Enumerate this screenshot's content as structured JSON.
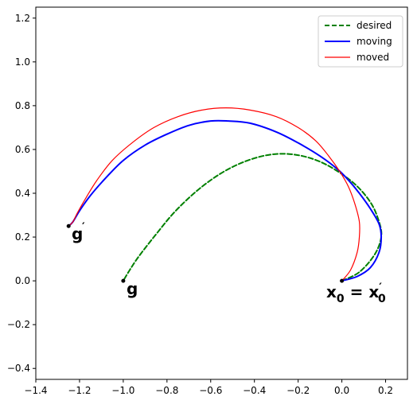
{
  "chart_data": {
    "type": "line",
    "title": "",
    "xlabel": "",
    "ylabel": "",
    "xlim": [
      -1.4,
      0.3
    ],
    "ylim": [
      -0.45,
      1.25
    ],
    "xticks": [
      -1.4,
      -1.2,
      -1.0,
      -0.8,
      -0.6,
      -0.4,
      -0.2,
      0.0,
      0.2
    ],
    "yticks": [
      -0.4,
      -0.2,
      0.0,
      0.2,
      0.4,
      0.6,
      0.8,
      1.0,
      1.2
    ],
    "xtick_labels": [
      "−1.4",
      "−1.2",
      "−1.0",
      "−0.8",
      "−0.6",
      "−0.4",
      "−0.2",
      "0.0",
      "0.2"
    ],
    "ytick_labels": [
      "−0.4",
      "−0.2",
      "0.0",
      "0.2",
      "0.4",
      "0.6",
      "0.8",
      "1.0",
      "1.2"
    ],
    "grid": false,
    "legend": "top-right",
    "series": [
      {
        "name": "desired",
        "color": "#008000",
        "style": "dashed",
        "x": [
          0.0,
          0.08,
          0.15,
          0.18,
          0.17,
          0.13,
          0.05,
          -0.07,
          -0.18,
          -0.29,
          -0.4,
          -0.52,
          -0.64,
          -0.76,
          -0.86,
          -0.93,
          -0.97,
          -1.0
        ],
        "y": [
          0.0,
          0.04,
          0.12,
          0.2,
          0.27,
          0.36,
          0.45,
          0.53,
          0.57,
          0.58,
          0.56,
          0.51,
          0.43,
          0.32,
          0.2,
          0.11,
          0.05,
          0.0
        ]
      },
      {
        "name": "moving",
        "color": "#0000ff",
        "style": "solid",
        "x": [
          0.0,
          0.07,
          0.13,
          0.17,
          0.18,
          0.17,
          0.13,
          0.08,
          0.03,
          -0.02,
          -0.1,
          -0.2,
          -0.3,
          -0.42,
          -0.52,
          -0.6,
          -0.7,
          -0.8,
          -0.9,
          -1.0,
          -1.08,
          -1.15,
          -1.2,
          -1.23,
          -1.25
        ],
        "y": [
          0.0,
          0.02,
          0.06,
          0.13,
          0.2,
          0.26,
          0.33,
          0.4,
          0.46,
          0.51,
          0.57,
          0.63,
          0.68,
          0.72,
          0.73,
          0.73,
          0.71,
          0.67,
          0.62,
          0.55,
          0.47,
          0.39,
          0.32,
          0.27,
          0.25
        ]
      },
      {
        "name": "moved",
        "color": "#ff0000",
        "style": "solid",
        "x": [
          0.0,
          0.04,
          0.07,
          0.08,
          0.08,
          0.06,
          0.03,
          -0.01,
          -0.06,
          -0.12,
          -0.2,
          -0.3,
          -0.42,
          -0.53,
          -0.64,
          -0.75,
          -0.86,
          -0.96,
          -1.05,
          -1.12,
          -1.17,
          -1.21,
          -1.23,
          -1.25
        ],
        "y": [
          0.0,
          0.05,
          0.13,
          0.2,
          0.27,
          0.35,
          0.43,
          0.5,
          0.57,
          0.64,
          0.7,
          0.75,
          0.78,
          0.79,
          0.78,
          0.75,
          0.7,
          0.63,
          0.55,
          0.46,
          0.38,
          0.31,
          0.27,
          0.25
        ]
      }
    ],
    "points": [
      {
        "name": "g",
        "x": -1.0,
        "y": 0.0
      },
      {
        "name": "g_prime",
        "x": -1.25,
        "y": 0.25
      },
      {
        "name": "x0",
        "x": 0.0,
        "y": 0.0
      }
    ],
    "annotations": {
      "g": "g",
      "g_prime": "g",
      "g_prime_mark": "′",
      "x0_main": "x",
      "x0_sub": "0",
      "x0_eq": " = ",
      "x0_rhs": "x",
      "x0_rhs_mark": "′",
      "x0_rhs_sub": "0"
    }
  }
}
